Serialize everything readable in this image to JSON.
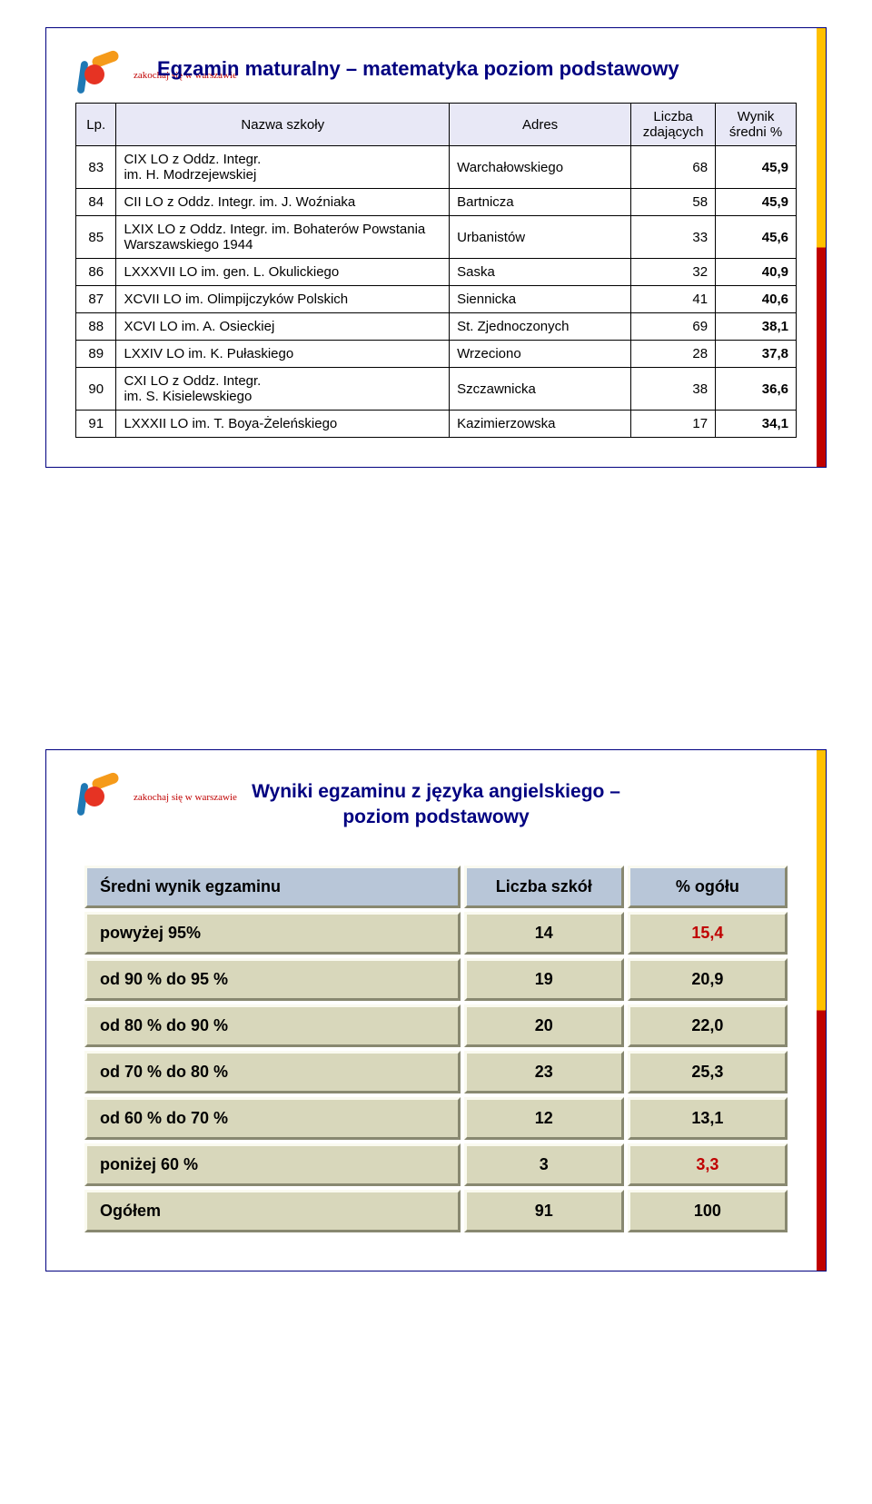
{
  "card1": {
    "title": "Egzamin maturalny – matematyka poziom podstawowy",
    "columns": [
      "Lp.",
      "Nazwa szkoły",
      "Adres",
      "Liczba zdających",
      "Wynik średni %"
    ],
    "rows": [
      {
        "lp": "83",
        "name": "CIX LO z Oddz. Integr.\nim. H. Modrzejewskiej",
        "addr": "Warchałowskiego",
        "n": "68",
        "res": "45,9"
      },
      {
        "lp": "84",
        "name": "CII LO z Oddz. Integr. im. J. Woźniaka",
        "addr": "Bartnicza",
        "n": "58",
        "res": "45,9"
      },
      {
        "lp": "85",
        "name": "LXIX LO z Oddz. Integr. im. Bohaterów Powstania Warszawskiego 1944",
        "addr": "Urbanistów",
        "n": "33",
        "res": "45,6"
      },
      {
        "lp": "86",
        "name": "LXXXVII LO im. gen. L. Okulickiego",
        "addr": "Saska",
        "n": "32",
        "res": "40,9"
      },
      {
        "lp": "87",
        "name": "XCVII LO im. Olimpijczyków Polskich",
        "addr": "Siennicka",
        "n": "41",
        "res": "40,6"
      },
      {
        "lp": "88",
        "name": "XCVI LO im. A. Osieckiej",
        "addr": "St. Zjednoczonych",
        "n": "69",
        "res": "38,1"
      },
      {
        "lp": "89",
        "name": "LXXIV LO im. K. Pułaskiego",
        "addr": "Wrzeciono",
        "n": "28",
        "res": "37,8"
      },
      {
        "lp": "90",
        "name": "CXI LO z Oddz. Integr.\nim. S. Kisielewskiego",
        "addr": "Szczawnicka",
        "n": "38",
        "res": "36,6"
      },
      {
        "lp": "91",
        "name": "LXXXII LO im. T. Boya-Żeleńskiego",
        "addr": "Kazimierzowska",
        "n": "17",
        "res": "34,1"
      }
    ]
  },
  "card2": {
    "title_line1": "Wyniki egzaminu z języka angielskiego –",
    "title_line2": "poziom  podstawowy",
    "columns": [
      "Średni wynik egzaminu",
      "Liczba szkół",
      "% ogółu"
    ],
    "rows": [
      {
        "label": "powyżej  95%",
        "n": "14",
        "pct": "15,4",
        "red": true
      },
      {
        "label": "od 90 %    do 95 %",
        "n": "19",
        "pct": "20,9",
        "red": false
      },
      {
        "label": "od 80 %   do 90 %",
        "n": "20",
        "pct": "22,0",
        "red": false
      },
      {
        "label": "od 70 %    do 80 %",
        "n": "23",
        "pct": "25,3",
        "red": false
      },
      {
        "label": "od 60 %    do 70 %",
        "n": "12",
        "pct": "13,1",
        "red": false
      },
      {
        "label": "poniżej 60 %",
        "n": "3",
        "pct": "3,3",
        "red": true
      },
      {
        "label": "Ogółem",
        "n": "91",
        "pct": "100",
        "red": false
      }
    ]
  },
  "logo_text": "zakochaj się\nw  warszawie"
}
